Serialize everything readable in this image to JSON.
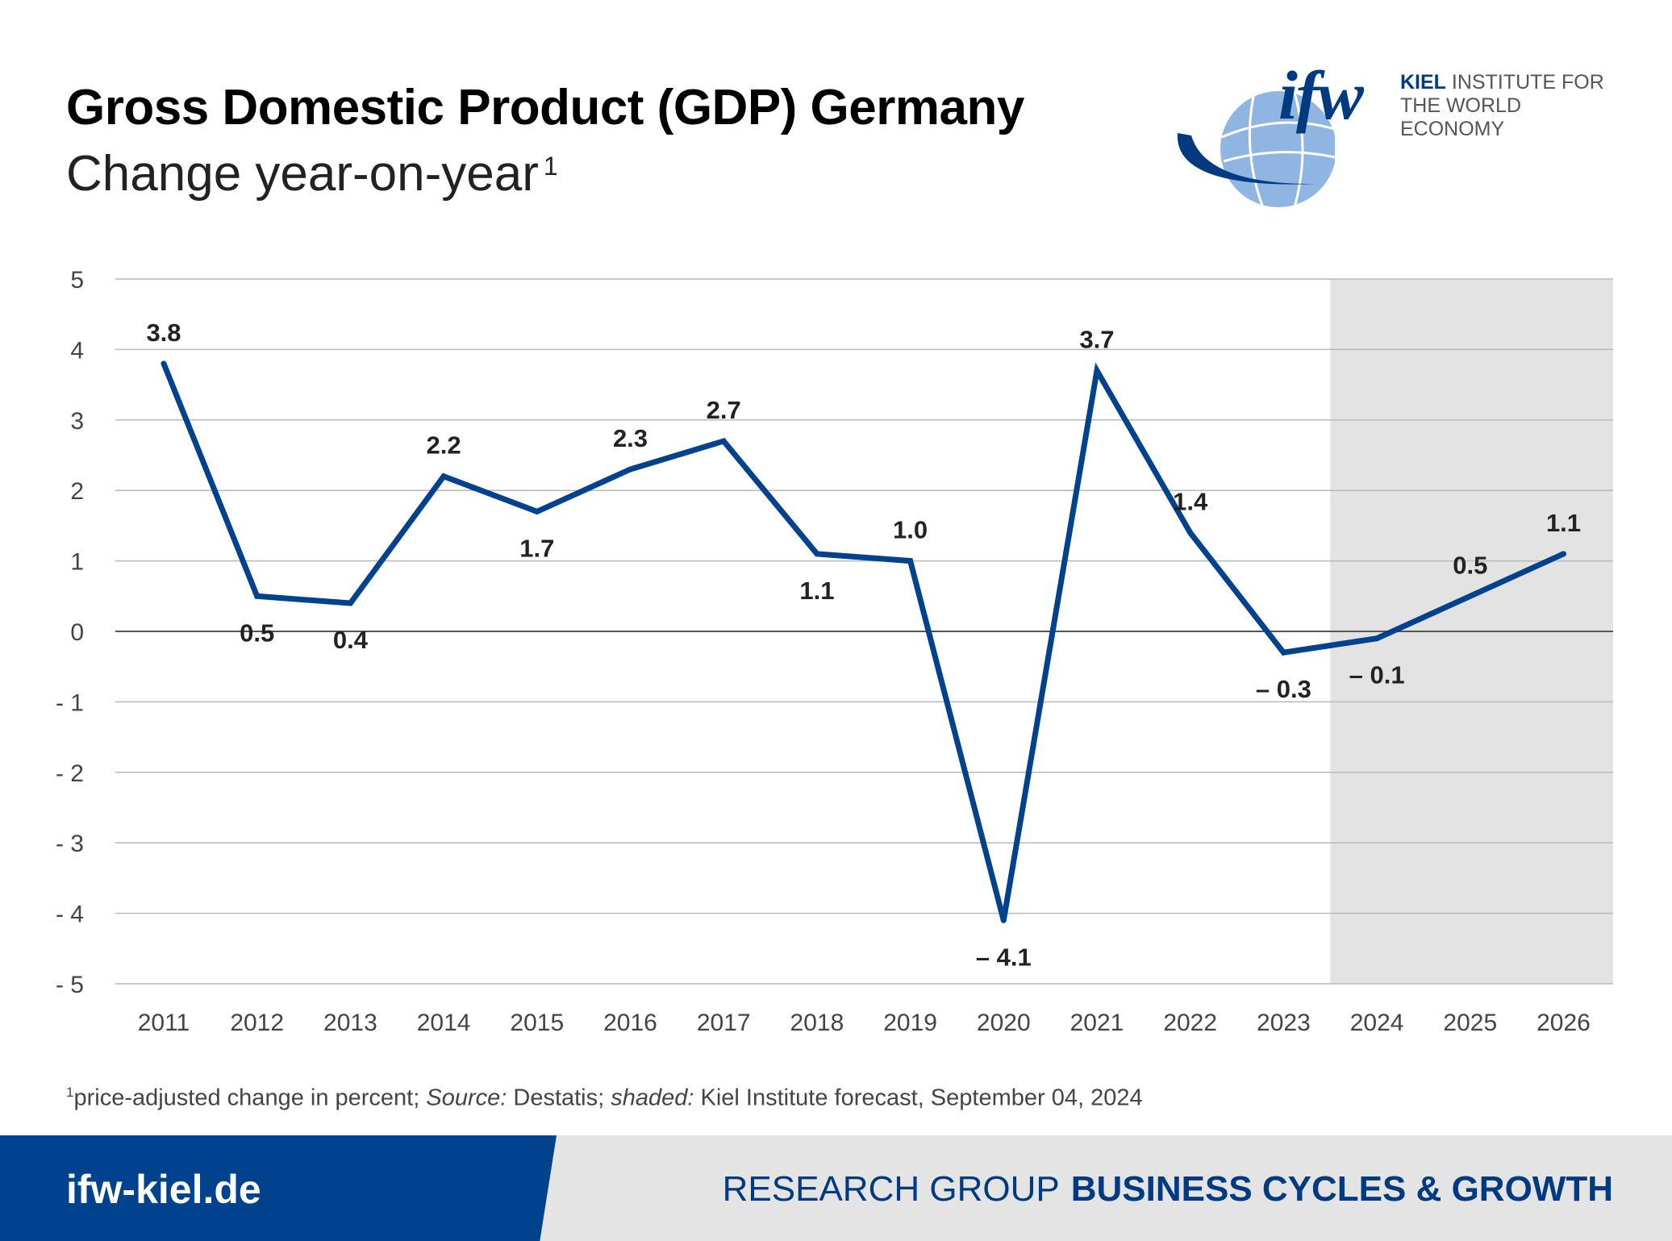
{
  "header": {
    "title": "Gross Domestic Product (GDP) Germany",
    "subtitle": "Change year-on-year",
    "subtitle_footnote_mark": "1"
  },
  "logo": {
    "mark": "ifw",
    "line1_bold": "KIEL",
    "line1_rest": "INSTITUTE FOR",
    "line2": "THE WORLD ECONOMY",
    "icon": "globe-icon"
  },
  "chart_data": {
    "type": "line",
    "title": "Gross Domestic Product (GDP) Germany",
    "subtitle": "Change year-on-year",
    "categories": [
      "2011",
      "2012",
      "2013",
      "2014",
      "2015",
      "2016",
      "2017",
      "2018",
      "2019",
      "2020",
      "2021",
      "2022",
      "2023",
      "2024",
      "2025",
      "2026"
    ],
    "series": [
      {
        "values": [
          3.8,
          0.5,
          0.4,
          2.2,
          1.7,
          2.3,
          2.7,
          1.1,
          1.0,
          -4.1,
          3.7,
          1.4,
          -0.3,
          -0.1,
          0.5,
          1.1
        ],
        "labels": [
          "3.8",
          "0.5",
          "0.4",
          "2.2",
          "1.7",
          "2.3",
          "2.7",
          "1.1",
          "1.0",
          "– 4.1",
          "3.7",
          "1.4",
          "– 0.3",
          "– 0.1",
          "0.5",
          "1.1"
        ],
        "label_side": [
          "above",
          "below",
          "below",
          "above",
          "below",
          "above",
          "above",
          "below",
          "above",
          "below",
          "above",
          "above",
          "below",
          "below",
          "above",
          "above"
        ],
        "color": "#00428e"
      }
    ],
    "ylim": [
      -5,
      5
    ],
    "yticks": [
      5,
      4,
      3,
      2,
      1,
      0,
      -1,
      -2,
      -3,
      -4,
      -5
    ],
    "ytick_labels": [
      "5",
      "4",
      "3",
      "2",
      "1",
      "0",
      "- 1",
      "- 2",
      "- 3",
      "- 4",
      "- 5"
    ],
    "grid": true,
    "shaded_region": {
      "from": "2024",
      "to": "2026",
      "meaning": "Kiel Institute forecast",
      "color": "#e3e3e3"
    },
    "xlabel": "",
    "ylabel": ""
  },
  "footnote": {
    "mark": "1",
    "text_a": "price-adjusted change in percent; ",
    "source_label": "Source:",
    "text_b": " Destatis; ",
    "shaded_label": "shaded:",
    "text_c": " Kiel Institute forecast, September 04, 2024"
  },
  "footer": {
    "url": "ifw-kiel.de",
    "group_label": "RESEARCH GROUP",
    "group_name": "BUSINESS CYCLES & GROWTH"
  },
  "colors": {
    "brand_blue": "#00428e",
    "footer_gray": "#e4e4e4",
    "grid": "#b9b9b9"
  }
}
